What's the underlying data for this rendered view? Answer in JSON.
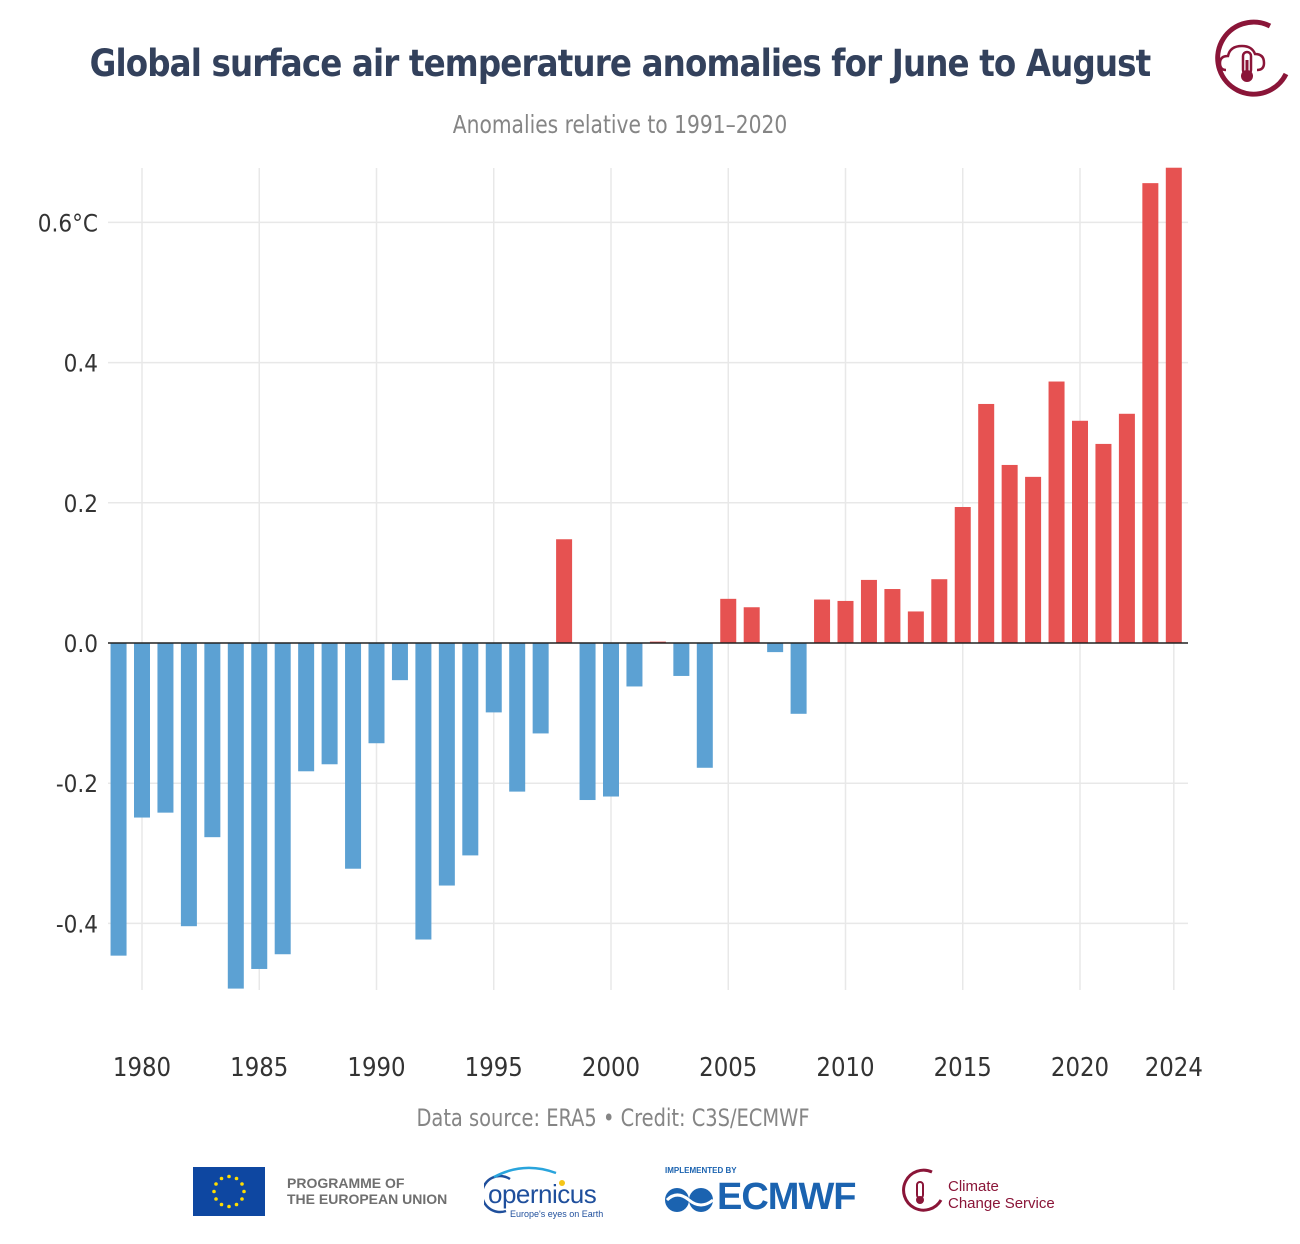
{
  "chart_data": {
    "type": "bar",
    "title": "Global surface air temperature anomalies for June to August",
    "subtitle": "Anomalies relative to 1991–2020",
    "credit": "Data source: ERA5 • Credit: C3S/ECMWF",
    "x": [
      1979,
      1980,
      1981,
      1982,
      1983,
      1984,
      1985,
      1986,
      1987,
      1988,
      1989,
      1990,
      1991,
      1992,
      1993,
      1994,
      1995,
      1996,
      1997,
      1998,
      1999,
      2000,
      2001,
      2002,
      2003,
      2004,
      2005,
      2006,
      2007,
      2008,
      2009,
      2010,
      2011,
      2012,
      2013,
      2014,
      2015,
      2016,
      2017,
      2018,
      2019,
      2020,
      2021,
      2022,
      2023,
      2024
    ],
    "values": [
      -0.446,
      -0.249,
      -0.242,
      -0.404,
      -0.277,
      -0.493,
      -0.465,
      -0.444,
      -0.183,
      -0.173,
      -0.322,
      -0.143,
      -0.053,
      -0.423,
      -0.346,
      -0.303,
      -0.099,
      -0.212,
      -0.129,
      0.148,
      -0.224,
      -0.219,
      -0.062,
      0.002,
      -0.047,
      -0.178,
      0.063,
      0.051,
      -0.013,
      -0.101,
      0.062,
      0.06,
      0.09,
      0.077,
      0.045,
      0.091,
      0.194,
      0.341,
      0.254,
      0.237,
      0.373,
      0.317,
      0.284,
      0.327,
      0.656,
      0.678
    ],
    "x_ticks": [
      "1980",
      "1985",
      "1990",
      "1995",
      "2000",
      "2005",
      "2010",
      "2015",
      "2020",
      "2024"
    ],
    "y_ticks": [
      "0.6°C",
      "0.4",
      "0.2",
      "0.0",
      "-0.2",
      "-0.4"
    ],
    "ylim": [
      -0.493,
      0.678
    ],
    "grid": true,
    "colors": {
      "positive": "#e65251",
      "negative": "#5ca1d3",
      "title": "#33415c",
      "grid": "#e8e8e8"
    }
  },
  "logos": {
    "eu_text_line1": "PROGRAMME OF",
    "eu_text_line2": "THE EUROPEAN UNION",
    "copernicus_word": "opernicus",
    "copernicus_tagline": "Europe's eyes on Earth",
    "ecmwf_implemented": "IMPLEMENTED BY",
    "ecmwf_word": "ECMWF",
    "c3s_line1": "Climate",
    "c3s_line2": "Change Service"
  }
}
